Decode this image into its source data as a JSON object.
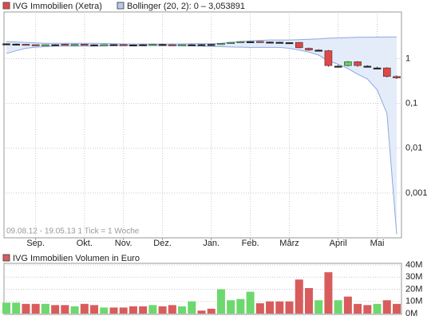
{
  "chart_data": [
    {
      "type": "candlestick",
      "name": "IVG Immobilien (Xetra)",
      "annotation": "09.08.12 - 19.05.13   1 Tick = 1 Woche",
      "categories": [
        null,
        null,
        null,
        "Sep.",
        null,
        null,
        null,
        null,
        "Okt.",
        null,
        null,
        null,
        "Nov.",
        null,
        null,
        null,
        "Dez.",
        null,
        null,
        null,
        null,
        "Jan.",
        null,
        null,
        null,
        "Feb.",
        null,
        null,
        null,
        "März",
        null,
        null,
        null,
        null,
        "April",
        null,
        null,
        null,
        "Mai",
        null,
        null
      ],
      "open": [
        2.15,
        2.12,
        2.1,
        2.05,
        2.0,
        2.05,
        2.1,
        2.05,
        2.1,
        2.04,
        2.02,
        2.06,
        2.06,
        2.03,
        2.05,
        2.05,
        2.08,
        2.05,
        2.03,
        2.05,
        2.06,
        2.08,
        2.1,
        2.2,
        2.3,
        2.4,
        2.42,
        2.35,
        2.32,
        2.28,
        2.3,
        1.7,
        1.55,
        1.5,
        0.68,
        0.7,
        0.85,
        0.68,
        0.62,
        0.62,
        0.4
      ],
      "close": [
        2.15,
        2.12,
        2.05,
        2.0,
        2.05,
        2.05,
        2.05,
        2.08,
        2.03,
        2.04,
        2.06,
        2.06,
        2.02,
        2.03,
        2.05,
        2.09,
        2.08,
        2.03,
        2.05,
        2.05,
        2.06,
        2.08,
        2.18,
        2.3,
        2.4,
        2.4,
        2.38,
        2.35,
        2.32,
        2.28,
        1.75,
        1.55,
        1.55,
        0.7,
        0.68,
        0.85,
        0.7,
        0.68,
        0.62,
        0.4,
        0.37
      ],
      "high": [
        2.2,
        2.17,
        2.14,
        2.09,
        2.09,
        2.1,
        2.14,
        2.12,
        2.14,
        2.09,
        2.1,
        2.11,
        2.1,
        2.07,
        2.1,
        2.13,
        2.13,
        2.09,
        2.09,
        2.1,
        2.11,
        2.13,
        2.22,
        2.34,
        2.45,
        2.46,
        2.47,
        2.4,
        2.37,
        2.33,
        2.34,
        1.76,
        1.62,
        1.56,
        0.72,
        0.88,
        0.88,
        0.71,
        0.66,
        0.64,
        0.42
      ],
      "low": [
        2.1,
        2.07,
        2.01,
        1.96,
        1.96,
        2.0,
        2.01,
        2.01,
        1.99,
        1.99,
        1.98,
        2.01,
        1.98,
        1.99,
        2.0,
        2.01,
        2.03,
        1.99,
        1.99,
        2.0,
        2.01,
        2.03,
        2.06,
        2.16,
        2.26,
        2.35,
        2.33,
        2.3,
        2.27,
        2.23,
        1.7,
        1.5,
        1.48,
        0.66,
        0.64,
        0.67,
        0.66,
        0.64,
        0.59,
        0.38,
        0.35
      ],
      "up_color": "#5ad65a",
      "down_color": "#e04848",
      "flat_color": "#222222",
      "bollinger": {
        "name": "Bollinger (20, 2): 0 – 3,053891",
        "color": "#8fa8e0",
        "fill": "#e4ecfa",
        "upper": [
          2.4,
          2.35,
          2.3,
          2.25,
          2.2,
          2.2,
          2.2,
          2.2,
          2.2,
          2.2,
          2.18,
          2.15,
          2.12,
          2.12,
          2.12,
          2.12,
          2.12,
          2.12,
          2.12,
          2.15,
          2.15,
          2.15,
          2.2,
          2.3,
          2.4,
          2.5,
          2.55,
          2.6,
          2.6,
          2.6,
          2.65,
          2.7,
          2.75,
          2.85,
          2.9,
          2.95,
          3.0,
          3.0,
          3.02,
          3.04,
          3.05
        ],
        "lower": [
          1.3,
          1.5,
          1.7,
          1.8,
          1.85,
          1.9,
          1.9,
          1.9,
          1.9,
          1.9,
          1.92,
          1.95,
          1.95,
          1.95,
          1.95,
          1.95,
          1.95,
          1.95,
          1.95,
          1.92,
          1.9,
          1.88,
          1.85,
          1.82,
          1.8,
          1.78,
          1.78,
          1.78,
          1.78,
          1.7,
          1.55,
          1.4,
          1.2,
          0.9,
          0.75,
          0.6,
          0.45,
          0.35,
          0.2,
          0.06,
          0.00012
        ]
      },
      "log": true,
      "ylim": [
        0.0001,
        11
      ],
      "yticks": [
        1,
        {
          "value": 0.1,
          "label": "0,1"
        },
        {
          "value": 0.01,
          "label": "0,01"
        },
        {
          "value": 0.001,
          "label": "0,001"
        }
      ],
      "grid": true
    },
    {
      "type": "bar",
      "title": "IVG Immobilien Volumen in Euro",
      "color": "#d85c5c",
      "values": [
        9000000,
        9000000,
        8000000,
        8000000,
        8000000,
        7000000,
        7000000,
        6000000,
        8000000,
        7000000,
        5000000,
        5000000,
        5000000,
        6000000,
        6000000,
        7000000,
        6000000,
        7000000,
        6000000,
        10000000,
        2500000,
        4000000,
        20000000,
        11000000,
        12000000,
        18000000,
        8500000,
        10000000,
        10000000,
        10000000,
        28000000,
        21000000,
        11000000,
        34000000,
        11000000,
        14000000,
        8000000,
        7000000,
        8000000,
        11000000,
        8000000
      ],
      "colors": [
        "#6dd86d",
        "#6dd86d",
        "#d85c5c",
        "#d85c5c",
        "#6dd86d",
        "#d85c5c",
        "#d85c5c",
        "#6dd86d",
        "#d85c5c",
        "#d85c5c",
        "#6dd86d",
        "#d85c5c",
        "#d85c5c",
        "#d85c5c",
        "#d85c5c",
        "#6dd86d",
        "#d85c5c",
        "#d85c5c",
        "#6dd86d",
        "#6dd86d",
        "#d85c5c",
        "#d85c5c",
        "#6dd86d",
        "#6dd86d",
        "#6dd86d",
        "#6dd86d",
        "#d85c5c",
        "#d85c5c",
        "#d85c5c",
        "#d85c5c",
        "#d85c5c",
        "#d85c5c",
        "#6dd86d",
        "#d85c5c",
        "#6dd86d",
        "#d85c5c",
        "#d85c5c",
        "#d85c5c",
        "#6dd86d",
        "#d85c5c",
        "#d85c5c"
      ],
      "ylim": [
        0,
        40000000
      ],
      "yticks": [
        {
          "value": 0,
          "label": "0M"
        },
        {
          "value": 10000000,
          "label": "10M"
        },
        {
          "value": 20000000,
          "label": "20M"
        },
        {
          "value": 30000000,
          "label": "30M"
        },
        {
          "value": 40000000,
          "label": "40M"
        }
      ],
      "grid": true
    }
  ]
}
